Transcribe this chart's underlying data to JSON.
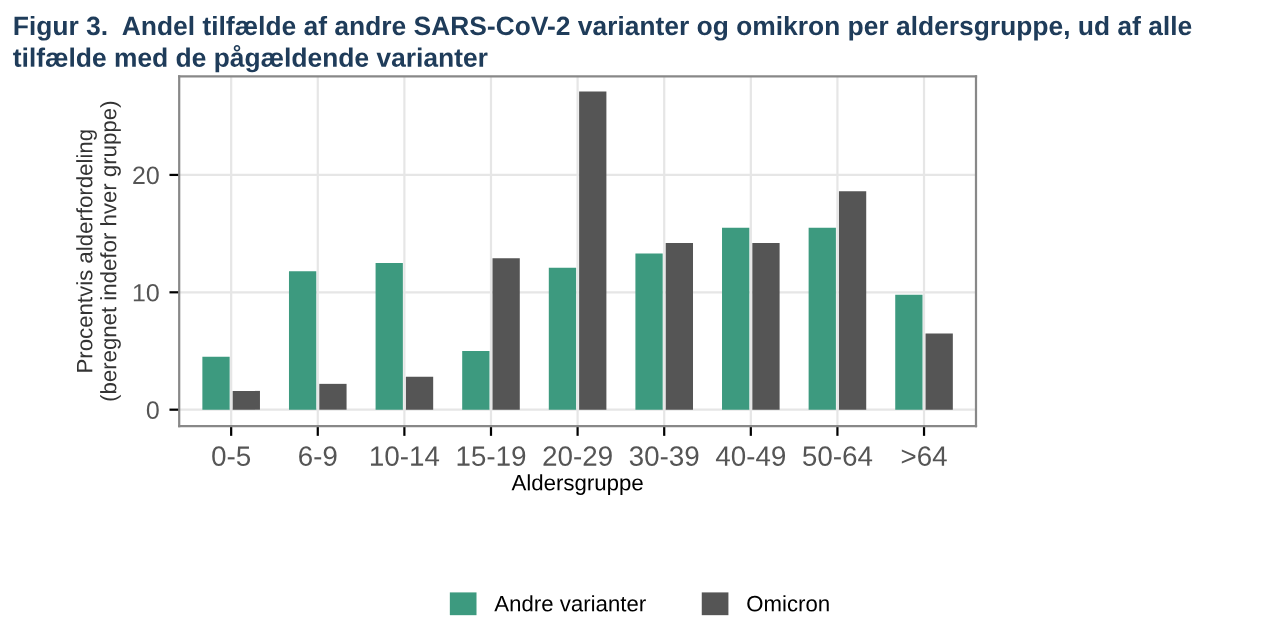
{
  "chart_data": {
    "type": "bar",
    "title": "Figur 3.  Andel tilfælde af andre SARS-CoV-2 varianter og omikron per aldersgruppe, ud af alle tilfælde med de pågældende varianter",
    "xlabel": "Aldersgruppe",
    "ylabel": "Procentvis alderfordeling\n(beregnet indefor hver gruppe)",
    "categories": [
      "0-5",
      "6-9",
      "10-14",
      "15-19",
      "20-29",
      "30-39",
      "40-49",
      "50-64",
      ">64"
    ],
    "series": [
      {
        "name": "Andre varianter",
        "color": "#3d9a7f",
        "values": [
          4.5,
          11.8,
          12.5,
          5.0,
          12.1,
          13.3,
          15.5,
          15.5,
          9.8
        ]
      },
      {
        "name": "Omicron",
        "color": "#555555",
        "values": [
          1.6,
          2.2,
          2.8,
          12.9,
          27.1,
          14.2,
          14.2,
          18.6,
          6.5
        ]
      }
    ],
    "ylim": [
      -1.4,
      28.4
    ],
    "yticks": [
      0,
      10,
      20
    ],
    "grid": true,
    "legend": "bottom"
  }
}
